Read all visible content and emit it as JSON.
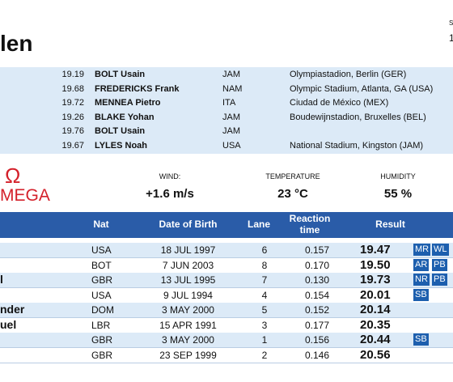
{
  "header": {
    "title": "len",
    "corner_top": "S",
    "corner_bottom": "1"
  },
  "records": [
    {
      "mark": "19.19",
      "name": "BOLT Usain",
      "nat": "JAM",
      "venue": "Olympiastadion, Berlin (GER)"
    },
    {
      "mark": "19.68",
      "name": "FREDERICKS Frank",
      "nat": "NAM",
      "venue": "Olympic Stadium, Atlanta, GA (USA)"
    },
    {
      "mark": "19.72",
      "name": "MENNEA Pietro",
      "nat": "ITA",
      "venue": "Ciudad de México (MEX)"
    },
    {
      "mark": "19.26",
      "name": "BLAKE Yohan",
      "nat": "JAM",
      "venue": "Boudewijnstadion, Bruxelles (BEL)"
    },
    {
      "mark": "19.76",
      "name": "BOLT Usain",
      "nat": "JAM"
    },
    {
      "mark": "19.67",
      "name": "LYLES Noah",
      "nat": "USA",
      "venue": "National Stadium, Kingston (JAM)"
    }
  ],
  "logo": {
    "symbol": "Ω",
    "text": "MEGA"
  },
  "conditions": [
    {
      "label": "WIND:",
      "value": "+1.6 m/s"
    },
    {
      "label": "TEMPERATURE",
      "value": "23 °C"
    },
    {
      "label": "HUMIDITY",
      "value": "55 %"
    }
  ],
  "table": {
    "columns": [
      "Nat",
      "Date of Birth",
      "Lane",
      "Reaction time",
      "Result"
    ],
    "rows": [
      {
        "nat": "USA",
        "dob": "18 JUL 1997",
        "lane": "6",
        "reaction": "0.157",
        "result": "19.47",
        "badges": [
          "MR",
          "WL"
        ]
      },
      {
        "nat": "BOT",
        "dob": "7 JUN 2003",
        "lane": "8",
        "reaction": "0.170",
        "result": "19.50",
        "badges": [
          "AR",
          "PB"
        ]
      },
      {
        "name": "l",
        "nat": "GBR",
        "dob": "13 JUL 1995",
        "lane": "7",
        "reaction": "0.130",
        "result": "19.73",
        "badges": [
          "NR",
          "PB"
        ]
      },
      {
        "nat": "USA",
        "dob": "9 JUL 1994",
        "lane": "4",
        "reaction": "0.154",
        "result": "20.01",
        "badges": [
          "SB"
        ]
      },
      {
        "name": "nder",
        "nat": "DOM",
        "dob": "3 MAY 2000",
        "lane": "5",
        "reaction": "0.152",
        "result": "20.14",
        "badges": []
      },
      {
        "name": "uel",
        "nat": "LBR",
        "dob": "15 APR 1991",
        "lane": "3",
        "reaction": "0.177",
        "result": "20.35",
        "badges": []
      },
      {
        "nat": "GBR",
        "dob": "3 MAY 2000",
        "lane": "1",
        "reaction": "0.156",
        "result": "20.44",
        "badges": [
          "SB"
        ]
      },
      {
        "nat": "GBR",
        "dob": "23 SEP 1999",
        "lane": "2",
        "reaction": "0.146",
        "result": "20.56",
        "badges": []
      }
    ]
  }
}
